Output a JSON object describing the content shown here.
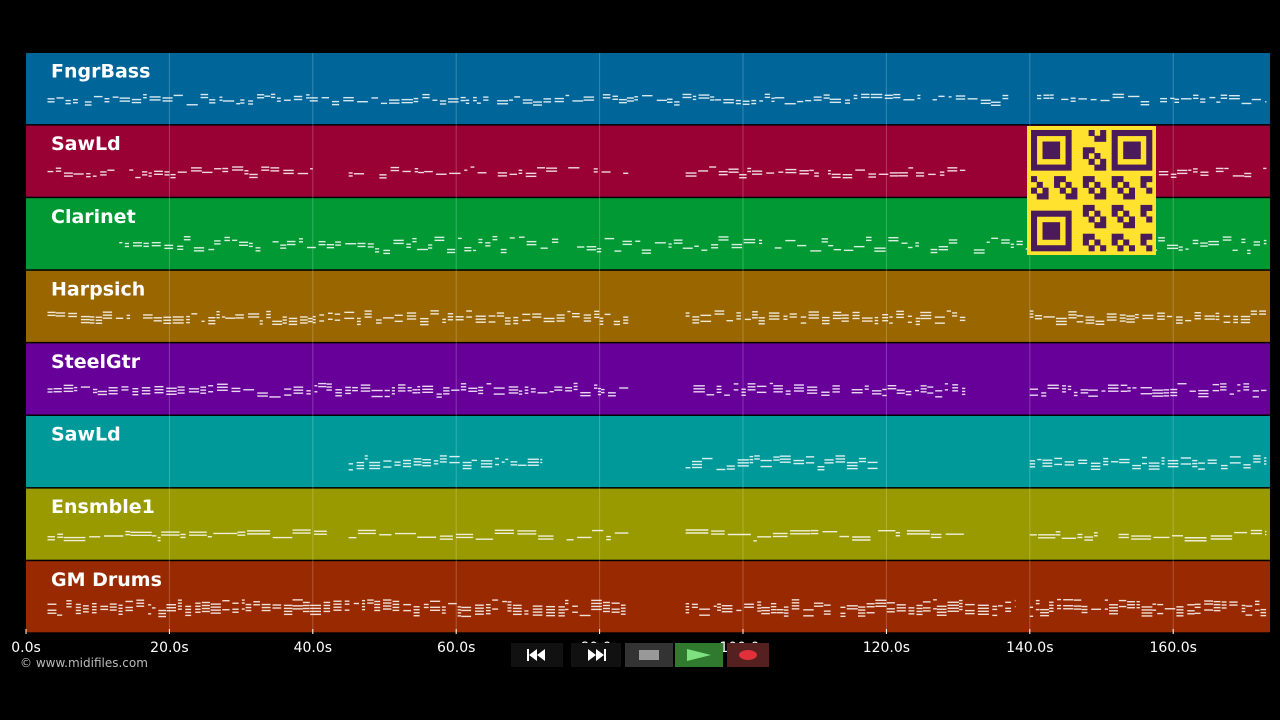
{
  "tracks": [
    {
      "name": "FngrBass",
      "color": "#006699"
    },
    {
      "name": "SawLd",
      "color": "#990033"
    },
    {
      "name": "Clarinet",
      "color": "#009933"
    },
    {
      "name": "Harpsich",
      "color": "#996600"
    },
    {
      "name": "SteelGtr",
      "color": "#660099"
    },
    {
      "name": "SawLd",
      "color": "#009999"
    },
    {
      "name": "Ensmble1",
      "color": "#999900"
    },
    {
      "name": "GM Drums",
      "color": "#992900"
    }
  ],
  "timeline": {
    "ticks": [
      "0.0s",
      "20.0s",
      "40.0s",
      "60.0s",
      "80.0s",
      "100.0s",
      "120.0s",
      "140.0s",
      "160.0s"
    ],
    "duration_seconds": 173.5
  },
  "copyright": "© www.midifiles.com",
  "transport": {
    "buttons": [
      "rewind-icon",
      "fast-forward-icon",
      "stop-icon",
      "play-icon",
      "record-icon"
    ]
  },
  "qr_code": {
    "color": "#ffe22e",
    "module_color": "#4a1a5a"
  }
}
